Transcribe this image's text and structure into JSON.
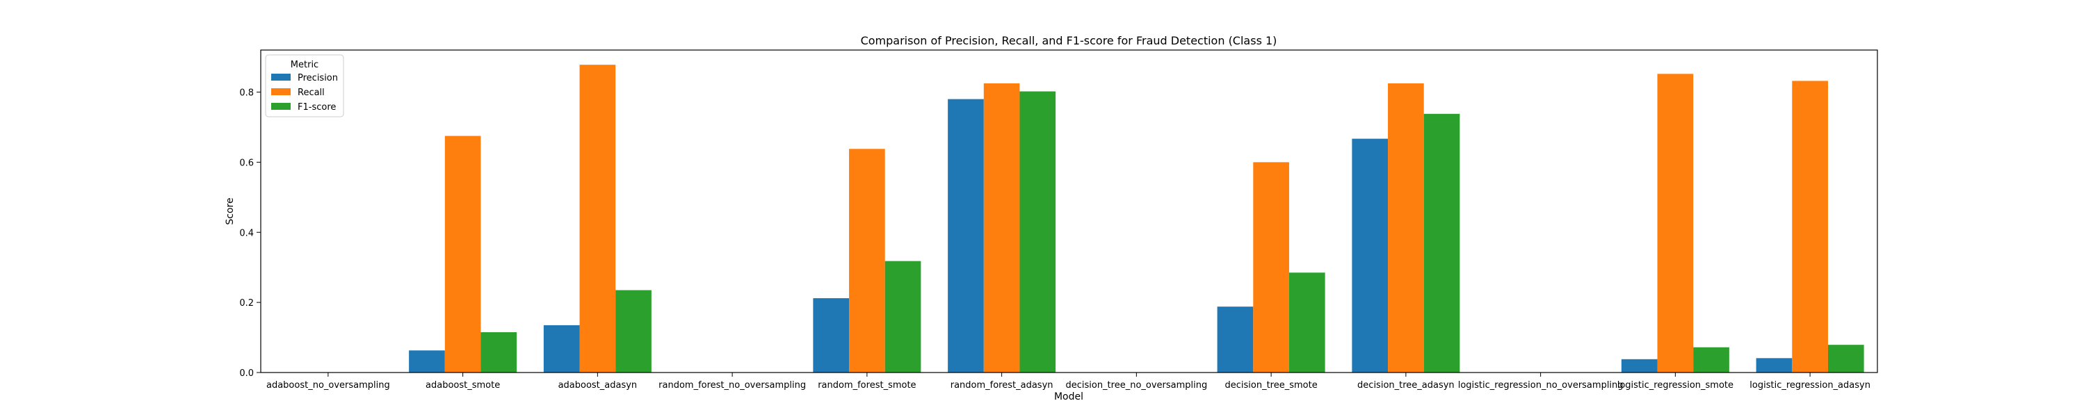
{
  "chart_data": {
    "type": "bar",
    "title": "Comparison of Precision, Recall, and F1-score for Fraud Detection (Class 1)",
    "xlabel": "Model",
    "ylabel": "Score",
    "ylim": [
      0,
      0.92
    ],
    "yticks": [
      "0.0",
      "0.2",
      "0.4",
      "0.6",
      "0.8"
    ],
    "grid": false,
    "legend": {
      "title": "Metric",
      "placement": "top-left"
    },
    "categories": [
      "adaboost_no_oversampling",
      "adaboost_smote",
      "adaboost_adasyn",
      "random_forest_no_oversampling",
      "random_forest_smote",
      "random_forest_adasyn",
      "decision_tree_no_oversampling",
      "decision_tree_smote",
      "decision_tree_adasyn",
      "logistic_regression_no_oversampling",
      "logistic_regression_smote",
      "logistic_regression_adasyn"
    ],
    "series": [
      {
        "name": "Precision",
        "color": "#1f77b4",
        "values": [
          0,
          0.063,
          0.135,
          0,
          0.212,
          0.78,
          0,
          0.188,
          0.667,
          0,
          0.038,
          0.041
        ]
      },
      {
        "name": "Recall",
        "color": "#ff7f0e",
        "values": [
          0,
          0.675,
          0.878,
          0,
          0.638,
          0.825,
          0,
          0.6,
          0.825,
          0,
          0.852,
          0.832
        ]
      },
      {
        "name": "F1-score",
        "color": "#2ca02c",
        "values": [
          0,
          0.115,
          0.235,
          0,
          0.318,
          0.802,
          0,
          0.285,
          0.738,
          0,
          0.072,
          0.079
        ]
      }
    ]
  }
}
